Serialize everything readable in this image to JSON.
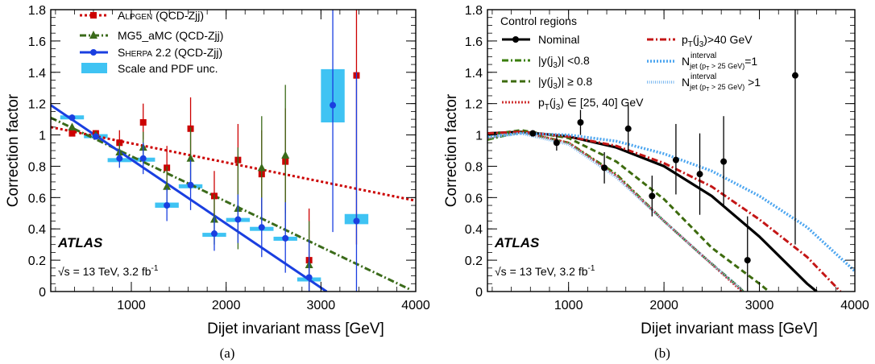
{
  "panels": [
    {
      "caption": "(a)",
      "chart_data": {
        "type": "scatter",
        "xlabel": "Dijet invariant mass [GeV]",
        "ylabel": "Correction factor",
        "xlim": [
          150,
          4000
        ],
        "ylim": [
          0,
          1.8
        ],
        "xticks": [
          1000,
          2000,
          3000,
          4000
        ],
        "yticks": [
          0,
          0.2,
          0.4,
          0.6,
          0.8,
          1,
          1.2,
          1.4,
          1.6,
          1.8
        ],
        "ytick_labels": [
          "0",
          "0.2",
          "0.4",
          "0.6",
          "0.8",
          "1",
          "1.2",
          "1.4",
          "1.6",
          "1.8"
        ],
        "legend_position": "top-left",
        "atlas_label": "ATLAS",
        "energy_label": "√s = 13 TeV, 3.2 fb",
        "energy_superscript": "-1",
        "band": {
          "name": "Scale and PDF unc.",
          "color": "#3FC3F3",
          "points": [
            {
              "x0": 250,
              "x1": 500,
              "y0": 1.11,
              "y1": 1.125
            },
            {
              "x0": 500,
              "x1": 750,
              "y0": 0.99,
              "y1": 1.005
            },
            {
              "x0": 750,
              "x1": 1000,
              "y0": 0.838,
              "y1": 0.852
            },
            {
              "x0": 1000,
              "x1": 1250,
              "y0": 0.84,
              "y1": 0.855
            },
            {
              "x0": 1250,
              "x1": 1500,
              "y0": 0.535,
              "y1": 0.568
            },
            {
              "x0": 1500,
              "x1": 1750,
              "y0": 0.67,
              "y1": 0.685
            },
            {
              "x0": 1750,
              "x1": 2000,
              "y0": 0.362,
              "y1": 0.375
            },
            {
              "x0": 2000,
              "x1": 2250,
              "y0": 0.457,
              "y1": 0.47
            },
            {
              "x0": 2250,
              "x1": 2500,
              "y0": 0.4,
              "y1": 0.413
            },
            {
              "x0": 2500,
              "x1": 2750,
              "y0": 0.335,
              "y1": 0.35
            },
            {
              "x0": 2750,
              "x1": 3000,
              "y0": 0.078,
              "y1": 0.09
            },
            {
              "x0": 3000,
              "x1": 3250,
              "y0": 1.08,
              "y1": 1.42
            },
            {
              "x0": 3250,
              "x1": 3500,
              "y0": 0.43,
              "y1": 0.495
            }
          ]
        },
        "series": [
          {
            "name": "ALPGEN (QCD-Zjj)",
            "name_main": "A",
            "name_sc": "LPGEN",
            "name_rest": " (QCD-Zjj)",
            "color": "#CC0000",
            "marker": "square",
            "dash": "3,3",
            "fit": {
              "x": [
                150,
                4000
              ],
              "y": [
                1.05,
                0.58
              ]
            },
            "points": [
              {
                "x": 375,
                "y": 1.01,
                "lo": 0.99,
                "hi": 1.03
              },
              {
                "x": 625,
                "y": 1.01,
                "lo": 0.99,
                "hi": 1.03
              },
              {
                "x": 875,
                "y": 0.95,
                "lo": 0.87,
                "hi": 1.03
              },
              {
                "x": 1125,
                "y": 1.08,
                "lo": 0.97,
                "hi": 1.2
              },
              {
                "x": 1375,
                "y": 0.79,
                "lo": 0.64,
                "hi": 0.93
              },
              {
                "x": 1625,
                "y": 1.04,
                "lo": 0.85,
                "hi": 1.24
              },
              {
                "x": 1875,
                "y": 0.61,
                "lo": 0.45,
                "hi": 0.77
              },
              {
                "x": 2125,
                "y": 0.84,
                "lo": 0.62,
                "hi": 1.07
              },
              {
                "x": 2375,
                "y": 0.75,
                "lo": 0.47,
                "hi": 1.03
              },
              {
                "x": 2625,
                "y": 0.83,
                "lo": 0.5,
                "hi": 1.17
              },
              {
                "x": 2875,
                "y": 0.2,
                "lo": 0.0,
                "hi": 0.53
              },
              {
                "x": 3375,
                "y": 1.38,
                "lo": 0.3,
                "hi": 1.8
              }
            ]
          },
          {
            "name": "MG5_aMC (QCD-Zjj)",
            "color": "#3B6B1A",
            "marker": "triangle",
            "dash": "8,3,2,3",
            "fit": {
              "x": [
                150,
                3950
              ],
              "y": [
                1.11,
                0.01
              ]
            },
            "points": [
              {
                "x": 375,
                "y": 1.05,
                "lo": 1.03,
                "hi": 1.07
              },
              {
                "x": 625,
                "y": 1.0,
                "lo": 0.98,
                "hi": 1.02
              },
              {
                "x": 875,
                "y": 0.89,
                "lo": 0.83,
                "hi": 0.95
              },
              {
                "x": 1125,
                "y": 0.92,
                "lo": 0.82,
                "hi": 1.02
              },
              {
                "x": 1375,
                "y": 0.67,
                "lo": 0.55,
                "hi": 0.8
              },
              {
                "x": 1625,
                "y": 0.85,
                "lo": 0.65,
                "hi": 1.05
              },
              {
                "x": 1875,
                "y": 0.46,
                "lo": 0.3,
                "hi": 0.62
              },
              {
                "x": 2125,
                "y": 0.53,
                "lo": 0.27,
                "hi": 0.92
              },
              {
                "x": 2375,
                "y": 0.79,
                "lo": 0.45,
                "hi": 1.12
              },
              {
                "x": 2625,
                "y": 0.87,
                "lo": 0.4,
                "hi": 1.32
              },
              {
                "x": 2875,
                "y": 0.17,
                "lo": 0.0,
                "hi": 0.45
              }
            ]
          },
          {
            "name": "SHERPA 2.2 (QCD-Zjj)",
            "name_main": "S",
            "name_sc": "HERPA",
            "name_rest": " 2.2 (QCD-Zjj)",
            "color": "#1A3FE0",
            "marker": "circle",
            "dash": "",
            "fit": {
              "x": [
                150,
                3060
              ],
              "y": [
                1.19,
                0.0
              ]
            },
            "points": [
              {
                "x": 375,
                "y": 1.11,
                "lo": 1.09,
                "hi": 1.13
              },
              {
                "x": 625,
                "y": 0.99,
                "lo": 0.97,
                "hi": 1.01
              },
              {
                "x": 875,
                "y": 0.85,
                "lo": 0.79,
                "hi": 0.91
              },
              {
                "x": 1125,
                "y": 0.85,
                "lo": 0.75,
                "hi": 0.95
              },
              {
                "x": 1375,
                "y": 0.55,
                "lo": 0.45,
                "hi": 0.66
              },
              {
                "x": 1625,
                "y": 0.68,
                "lo": 0.52,
                "hi": 0.84
              },
              {
                "x": 1875,
                "y": 0.37,
                "lo": 0.26,
                "hi": 0.48
              },
              {
                "x": 2125,
                "y": 0.46,
                "lo": 0.31,
                "hi": 0.62
              },
              {
                "x": 2375,
                "y": 0.41,
                "lo": 0.22,
                "hi": 0.6
              },
              {
                "x": 2625,
                "y": 0.34,
                "lo": 0.12,
                "hi": 0.57
              },
              {
                "x": 2875,
                "y": 0.09,
                "lo": 0.0,
                "hi": 0.33
              },
              {
                "x": 3125,
                "y": 1.19,
                "lo": 0.38,
                "hi": 1.8
              },
              {
                "x": 3375,
                "y": 0.45,
                "lo": 0.0,
                "hi": 1.4
              }
            ]
          }
        ]
      }
    },
    {
      "caption": "(b)",
      "chart_data": {
        "type": "line",
        "xlabel": "Dijet invariant mass [GeV]",
        "ylabel": "Correction factor",
        "xlim": [
          150,
          4000
        ],
        "ylim": [
          0,
          1.8
        ],
        "xticks": [
          1000,
          2000,
          3000,
          4000
        ],
        "yticks": [
          0,
          0.2,
          0.4,
          0.6,
          0.8,
          1,
          1.2,
          1.4,
          1.6,
          1.8
        ],
        "ytick_labels": [
          "0",
          "0.2",
          "0.4",
          "0.6",
          "0.8",
          "1",
          "1.2",
          "1.4",
          "1.6",
          "1.8"
        ],
        "legend_title": "Control regions",
        "legend_position": "top",
        "atlas_label": "ATLAS",
        "energy_label": "√s = 13 TeV, 3.2 fb",
        "energy_superscript": "-1",
        "data_points": {
          "name": "Nominal",
          "color": "#000000",
          "points": [
            {
              "x": 625,
              "y": 1.01,
              "lo": 0.99,
              "hi": 1.03
            },
            {
              "x": 875,
              "y": 0.95,
              "lo": 0.9,
              "hi": 1.0
            },
            {
              "x": 1125,
              "y": 1.08,
              "lo": 1.0,
              "hi": 1.16
            },
            {
              "x": 1375,
              "y": 0.79,
              "lo": 0.69,
              "hi": 0.89
            },
            {
              "x": 1625,
              "y": 1.04,
              "lo": 0.89,
              "hi": 1.19
            },
            {
              "x": 1875,
              "y": 0.61,
              "lo": 0.48,
              "hi": 0.74
            },
            {
              "x": 2125,
              "y": 0.84,
              "lo": 0.62,
              "hi": 1.07
            },
            {
              "x": 2375,
              "y": 0.75,
              "lo": 0.49,
              "hi": 1.01
            },
            {
              "x": 2625,
              "y": 0.83,
              "lo": 0.55,
              "hi": 1.12
            },
            {
              "x": 2875,
              "y": 0.2,
              "lo": 0.0,
              "hi": 0.48
            },
            {
              "x": 3375,
              "y": 1.38,
              "lo": 0.3,
              "hi": 1.8
            }
          ]
        },
        "curves": [
          {
            "name": "Nominal",
            "color": "#000000",
            "dash": "",
            "width": 3.2,
            "x": [
              150,
              500,
              1000,
              1500,
              2000,
              2500,
              3000,
              3500,
              3600
            ],
            "y": [
              1.01,
              1.02,
              0.99,
              0.92,
              0.8,
              0.61,
              0.35,
              0.05,
              0.0
            ]
          },
          {
            "name_pre": "|y(j",
            "name_sub": "3",
            "name_post": ")| <0.8",
            "color": "#3A7D0B",
            "dash": "8,3,2,3",
            "width": 3,
            "x": [
              150,
              500,
              1000,
              1500,
              2000,
              2400,
              2800,
              2830
            ],
            "y": [
              0.97,
              1.02,
              0.95,
              0.75,
              0.45,
              0.23,
              0.02,
              0.0
            ]
          },
          {
            "name_pre": "|y(j",
            "name_sub": "3",
            "name_post": ")| ≥ 0.8",
            "color": "#3D6B0E",
            "dash": "7,4",
            "width": 3,
            "x": [
              150,
              500,
              1000,
              1500,
              2000,
              2500,
              3000,
              3100
            ],
            "y": [
              1.0,
              1.03,
              0.98,
              0.83,
              0.59,
              0.28,
              0.05,
              0.0
            ]
          },
          {
            "name_pre": "p",
            "name_sub": "T",
            "name_post": "(j",
            "name_sub2": "3",
            "name_post2": ") ∈ [25, 40] GeV",
            "color": "#D03232",
            "dash": "2,2",
            "width": 3,
            "x": [
              150,
              500,
              1000,
              1500,
              2000,
              2400,
              2800,
              2820
            ],
            "y": [
              0.98,
              1.02,
              0.95,
              0.74,
              0.45,
              0.23,
              0.01,
              0.0
            ]
          },
          {
            "name_pre": "p",
            "name_sub": "T",
            "name_post": "(j",
            "name_sub2": "3",
            "name_post2": ")>40 GeV",
            "color": "#C41616",
            "dash": "8,3,2,3",
            "width": 3,
            "x": [
              150,
              500,
              1000,
              1500,
              2000,
              2500,
              3000,
              3500,
              3850
            ],
            "y": [
              1.01,
              1.02,
              0.99,
              0.93,
              0.82,
              0.67,
              0.46,
              0.22,
              0.0
            ]
          },
          {
            "name_pre": "N",
            "name_sub": "jet (p",
            "name_sub_t": "T",
            "name_sub_post": " > 25 GeV)",
            "name_sup": "interval",
            "name_post": "=1",
            "color": "#4DA6F0",
            "dash": "2,2",
            "width": 3.5,
            "x": [
              150,
              500,
              1000,
              1500,
              2000,
              2500,
              3000,
              3500,
              4000
            ],
            "y": [
              0.99,
              1.01,
              1.0,
              0.96,
              0.88,
              0.77,
              0.61,
              0.41,
              0.13
            ]
          },
          {
            "name_pre": "N",
            "name_sub": "jet (p",
            "name_sub_t": "T",
            "name_sub_post": " > 25 GeV)",
            "name_sup": "interval",
            "name_post": " >1",
            "color": "#7BB8F0",
            "dash": "1,1.5",
            "width": 3.5,
            "x": [
              150,
              500,
              1000,
              1500,
              2000,
              2400,
              2800,
              2820
            ],
            "y": [
              0.98,
              1.01,
              0.94,
              0.73,
              0.45,
              0.23,
              0.02,
              0.0
            ]
          }
        ]
      }
    }
  ]
}
